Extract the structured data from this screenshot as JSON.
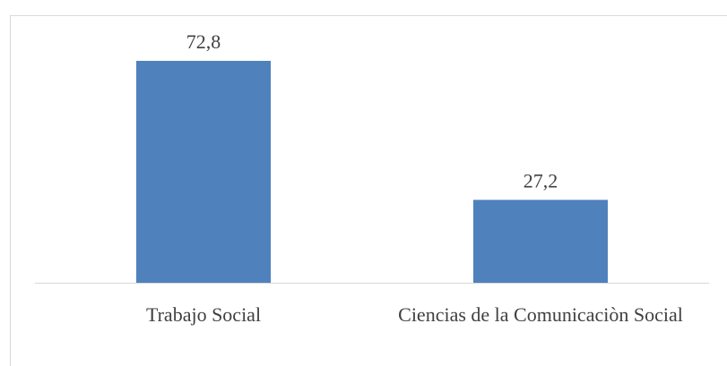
{
  "chart_data": {
    "type": "bar",
    "categories": [
      "Trabajo Social",
      "Ciencias de la Comunicaciòn Social"
    ],
    "values": [
      72.8,
      27.2
    ],
    "value_labels": [
      "72,8",
      "27,2"
    ],
    "color": "#4f81bd"
  }
}
